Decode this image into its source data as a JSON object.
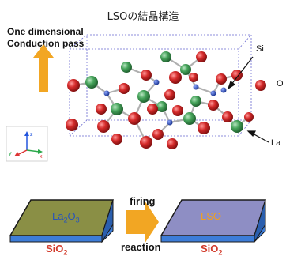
{
  "title": "LSOの結晶構造",
  "conduction_label": [
    "One dimensional",
    "Conduction pass"
  ],
  "atom_labels": {
    "si": "Si",
    "o": "O",
    "la": "La"
  },
  "axes_triad": {
    "x": "x",
    "y": "y",
    "z": "z"
  },
  "process": {
    "arrow_top": "firing",
    "arrow_bottom": "reaction",
    "left_film": {
      "base": "La",
      "sub1": "2",
      "mid": "O",
      "sub2": "3"
    },
    "right_film": "LSO",
    "substrate": {
      "base": "SiO",
      "sub": "2"
    }
  },
  "colors": {
    "oxygen": "#cc2222",
    "lanthanum": "#3f9a55",
    "silicon": "#1f3fa8",
    "arrow": "#f2a623",
    "film_left": "#8a8f45",
    "film_right": "#8e8ec4",
    "substrate": "#3d7dd8"
  }
}
